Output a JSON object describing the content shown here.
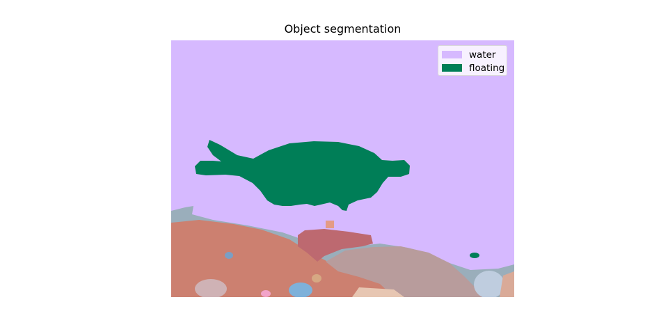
{
  "title": "Object segmentation",
  "colors": {
    "water": "#d6b9ff",
    "floating": "#007e57"
  },
  "legend": {
    "items": [
      {
        "label": "water",
        "color": "#d6b9ff"
      },
      {
        "label": "floating",
        "color": "#007e57"
      }
    ],
    "position": "top-right"
  }
}
